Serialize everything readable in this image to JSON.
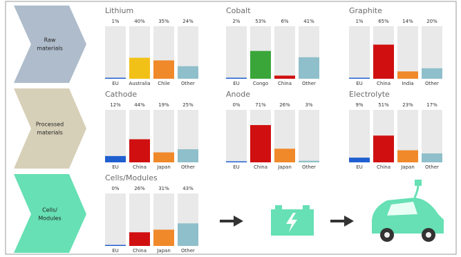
{
  "stages": [
    [
      "Raw",
      "materials"
    ],
    [
      "Processed",
      "materials"
    ],
    [
      "Cells/",
      "Modules"
    ]
  ],
  "chart_data": [
    {
      "type": "bar",
      "title": "Lithium",
      "categories": [
        "EU",
        "Australia",
        "Chile",
        "Other"
      ],
      "values": [
        1,
        40,
        35,
        24
      ],
      "value_labels": [
        "1%",
        "40%",
        "35%",
        "24%"
      ],
      "colors": [
        "#1f5fd0",
        "#f2c118",
        "#f0892a",
        "#8fbfca"
      ],
      "ylim": [
        0,
        100
      ]
    },
    {
      "type": "bar",
      "title": "Cobalt",
      "categories": [
        "EU",
        "Congo",
        "China",
        "Other"
      ],
      "values": [
        2,
        53,
        6,
        41
      ],
      "value_labels": [
        "2%",
        "53%",
        "6%",
        "41%"
      ],
      "colors": [
        "#1f5fd0",
        "#3aa63a",
        "#d01010",
        "#8fbfca"
      ],
      "ylim": [
        0,
        100
      ]
    },
    {
      "type": "bar",
      "title": "Graphite",
      "categories": [
        "EU",
        "China",
        "India",
        "Other"
      ],
      "values": [
        1,
        65,
        14,
        20
      ],
      "value_labels": [
        "1%",
        "65%",
        "14%",
        "20%"
      ],
      "colors": [
        "#1f5fd0",
        "#d01010",
        "#f0892a",
        "#8fbfca"
      ],
      "ylim": [
        0,
        100
      ]
    },
    {
      "type": "bar",
      "title": "Cathode",
      "categories": [
        "EU",
        "China",
        "Japan",
        "Other"
      ],
      "values": [
        12,
        44,
        19,
        25
      ],
      "value_labels": [
        "12%",
        "44%",
        "19%",
        "25%"
      ],
      "colors": [
        "#1f5fd0",
        "#d01010",
        "#f0892a",
        "#8fbfca"
      ],
      "ylim": [
        0,
        100
      ]
    },
    {
      "type": "bar",
      "title": "Anode",
      "categories": [
        "EU",
        "China",
        "Japan",
        "Other"
      ],
      "values": [
        0,
        71,
        26,
        3
      ],
      "value_labels": [
        "0%",
        "71%",
        "26%",
        "3%"
      ],
      "colors": [
        "#1f5fd0",
        "#d01010",
        "#f0892a",
        "#8fbfca"
      ],
      "ylim": [
        0,
        100
      ]
    },
    {
      "type": "bar",
      "title": "Electrolyte",
      "categories": [
        "EU",
        "China",
        "Japan",
        "Other"
      ],
      "values": [
        9,
        51,
        23,
        17
      ],
      "value_labels": [
        "9%",
        "51%",
        "23%",
        "17%"
      ],
      "colors": [
        "#1f5fd0",
        "#d01010",
        "#f0892a",
        "#8fbfca"
      ],
      "ylim": [
        0,
        100
      ]
    },
    {
      "type": "bar",
      "title": "Cells/Modules",
      "categories": [
        "EU",
        "China",
        "Japan",
        "Other"
      ],
      "values": [
        0,
        26,
        31,
        43
      ],
      "value_labels": [
        "0%",
        "26%",
        "31%",
        "43%"
      ],
      "colors": [
        "#1f5fd0",
        "#d01010",
        "#f0892a",
        "#8fbfca"
      ],
      "ylim": [
        0,
        100
      ]
    }
  ]
}
